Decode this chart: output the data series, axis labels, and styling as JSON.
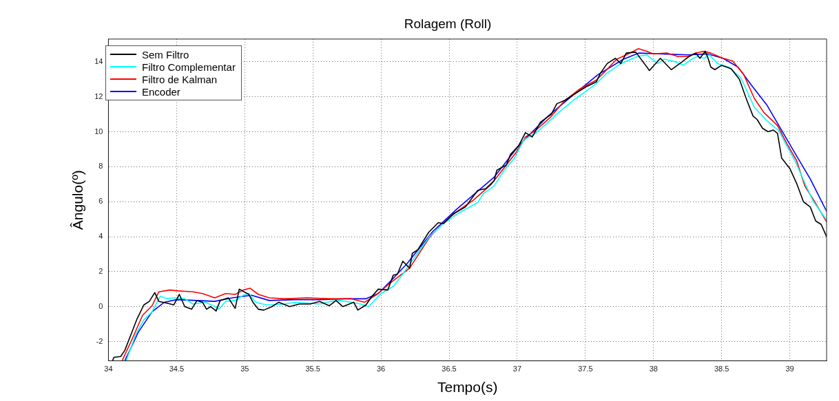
{
  "chart_data": {
    "type": "line",
    "title": "Rolagem (Roll)",
    "xlabel": "Tempo(s)",
    "ylabel": "Ângulo(º)",
    "xlim": [
      34,
      39.27
    ],
    "ylim": [
      -3.1,
      15.3
    ],
    "xticks": [
      34,
      34.5,
      35,
      35.5,
      36,
      36.5,
      37,
      37.5,
      38,
      38.5,
      39
    ],
    "yticks": [
      -2,
      0,
      2,
      4,
      6,
      8,
      10,
      12,
      14
    ],
    "grid": true,
    "legend": "top left",
    "line_style": "solid",
    "marker": "none",
    "series": [
      {
        "name": "Sem Filtro",
        "color": "#000000",
        "x": [
          34.03,
          34.04,
          34.09,
          34.12,
          34.17,
          34.21,
          34.26,
          34.3,
          34.34,
          34.37,
          34.43,
          34.48,
          34.52,
          34.56,
          34.61,
          34.65,
          34.69,
          34.72,
          34.75,
          34.79,
          34.82,
          34.88,
          34.93,
          34.96,
          35.03,
          35.06,
          35.1,
          35.14,
          35.2,
          35.25,
          35.33,
          35.4,
          35.48,
          35.55,
          35.62,
          35.67,
          35.72,
          35.8,
          35.83,
          35.89,
          35.93,
          35.98,
          36.05,
          36.09,
          36.12,
          36.16,
          36.21,
          36.23,
          36.27,
          36.35,
          36.42,
          36.46,
          36.53,
          36.62,
          36.71,
          36.77,
          36.83,
          36.85,
          36.92,
          36.95,
          37.01,
          37.06,
          37.11,
          37.17,
          37.25,
          37.29,
          37.35,
          37.4,
          37.5,
          37.58,
          37.61,
          37.66,
          37.72,
          37.76,
          37.8,
          37.87,
          37.97,
          38.05,
          38.13,
          38.21,
          38.26,
          38.31,
          38.34,
          38.38,
          38.4,
          38.42,
          38.45,
          38.5,
          38.57,
          38.63,
          38.68,
          38.73,
          38.76,
          38.8,
          38.84,
          38.88,
          38.91,
          38.94,
          39.0,
          39.05,
          39.1,
          39.15,
          39.19,
          39.23,
          39.27
        ],
        "values": [
          -3.1,
          -2.9,
          -2.85,
          -2.5,
          -1.5,
          -0.7,
          0.1,
          0.3,
          0.8,
          0.3,
          0.2,
          0.1,
          0.7,
          0,
          -0.15,
          0.35,
          0.25,
          -0.15,
          0,
          -0.25,
          0.35,
          0.5,
          -0.1,
          1.0,
          0.7,
          0.25,
          -0.15,
          -0.2,
          0,
          0.25,
          0,
          0.15,
          0.15,
          0.3,
          0.05,
          0.35,
          0,
          0.25,
          -0.2,
          0.1,
          0.55,
          1.0,
          0.95,
          1.8,
          1.85,
          2.6,
          2.2,
          3.05,
          3.25,
          4.25,
          4.8,
          4.75,
          5.3,
          5.7,
          6.65,
          6.75,
          7.2,
          7.8,
          8.1,
          8.7,
          9.2,
          9.95,
          9.7,
          10.55,
          11.0,
          11.6,
          11.8,
          12.05,
          12.55,
          12.85,
          13.35,
          13.9,
          14.2,
          13.9,
          14.5,
          14.55,
          13.5,
          14.2,
          13.55,
          14.0,
          14.3,
          14.5,
          14.2,
          14.6,
          14.2,
          13.7,
          13.55,
          13.8,
          13.6,
          13.0,
          11.9,
          10.9,
          10.7,
          10.2,
          10.0,
          10.1,
          9.9,
          8.5,
          7.9,
          7.05,
          6.0,
          5.7,
          4.9,
          4.7,
          4.0
        ]
      },
      {
        "name": "Filtro Complementar",
        "color": "#00ffff",
        "x": [
          34.13,
          34.2,
          34.26,
          34.32,
          34.38,
          34.43,
          34.48,
          34.56,
          34.62,
          34.71,
          34.77,
          34.81,
          34.86,
          34.93,
          34.99,
          35.03,
          35.08,
          35.16,
          35.2,
          35.29,
          35.37,
          35.46,
          35.55,
          35.63,
          35.7,
          35.78,
          35.85,
          35.91,
          36.0,
          36.09,
          36.15,
          36.24,
          36.36,
          36.45,
          36.56,
          36.71,
          36.75,
          36.83,
          36.9,
          36.98,
          37.05,
          37.13,
          37.2,
          37.31,
          37.43,
          37.5,
          37.58,
          37.65,
          37.76,
          37.88,
          37.95,
          38.03,
          38.08,
          38.16,
          38.22,
          38.28,
          38.32,
          38.37,
          38.41,
          38.47,
          38.55,
          38.64,
          38.74,
          38.83,
          38.92,
          39.04,
          39.1,
          39.17,
          39.27
        ],
        "values": [
          -3.1,
          -1.6,
          -0.75,
          -0.3,
          0.6,
          0.45,
          0.5,
          0.45,
          0.15,
          0.25,
          0.05,
          -0.15,
          0.3,
          0.35,
          0.65,
          0.75,
          0.25,
          0.1,
          0.1,
          0.15,
          0.25,
          0.2,
          0.15,
          0.3,
          0.35,
          0.25,
          0.15,
          0,
          0.75,
          1.15,
          1.75,
          2.75,
          4.05,
          4.7,
          5.3,
          5.95,
          6.45,
          6.9,
          7.75,
          8.5,
          9.55,
          9.9,
          10.35,
          11.15,
          11.9,
          12.3,
          12.75,
          13.3,
          13.9,
          14.3,
          14.4,
          13.9,
          14.15,
          14.0,
          13.8,
          14.15,
          14.3,
          14.2,
          14.4,
          13.9,
          13.7,
          13.1,
          11.4,
          10.65,
          10.05,
          8.3,
          7.25,
          6.05,
          4.95
        ]
      },
      {
        "name": "Filtro de Kalman",
        "color": "#ff0000",
        "x": [
          34.1,
          34.18,
          34.25,
          34.32,
          34.37,
          34.45,
          34.51,
          34.62,
          34.69,
          34.78,
          34.86,
          34.93,
          34.99,
          35.04,
          35.1,
          35.18,
          35.29,
          35.46,
          35.63,
          35.78,
          35.88,
          35.97,
          36.06,
          36.21,
          36.36,
          36.45,
          36.56,
          36.68,
          36.81,
          36.88,
          36.99,
          37.06,
          37.13,
          37.24,
          37.35,
          37.46,
          37.58,
          37.65,
          37.73,
          37.8,
          37.89,
          37.95,
          38.0,
          38.1,
          38.18,
          38.25,
          38.31,
          38.37,
          38.42,
          38.51,
          38.58,
          38.66,
          38.74,
          38.81,
          38.91,
          38.98,
          39.05,
          39.11,
          39.19,
          39.27
        ],
        "values": [
          -3.1,
          -1.75,
          -0.5,
          0.05,
          0.85,
          0.95,
          0.9,
          0.85,
          0.75,
          0.5,
          0.75,
          0.7,
          0.95,
          1.05,
          0.7,
          0.5,
          0.45,
          0.5,
          0.45,
          0.45,
          0.25,
          0.7,
          1.3,
          2.2,
          4.0,
          4.75,
          5.45,
          6.1,
          7.0,
          7.7,
          8.8,
          9.7,
          10.05,
          10.8,
          11.8,
          12.45,
          12.95,
          13.5,
          14.15,
          14.4,
          14.75,
          14.6,
          14.45,
          14.5,
          14.3,
          14.3,
          14.5,
          14.6,
          14.5,
          14.2,
          14.05,
          13.3,
          11.9,
          11.1,
          10.35,
          9.3,
          8.35,
          6.9,
          5.9,
          4.85
        ]
      },
      {
        "name": "Encoder",
        "color": "#0000ff",
        "x": [
          34.12,
          34.22,
          34.32,
          34.41,
          34.5,
          34.65,
          34.78,
          34.91,
          35.05,
          35.18,
          35.37,
          35.55,
          35.74,
          35.89,
          35.98,
          36.1,
          36.19,
          36.38,
          36.56,
          36.83,
          37.01,
          37.22,
          37.41,
          37.59,
          37.78,
          37.89,
          38.06,
          38.25,
          38.4,
          38.51,
          38.62,
          38.72,
          38.83,
          38.92,
          39.04,
          39.15,
          39.27
        ],
        "values": [
          -3.1,
          -1.45,
          -0.3,
          0.25,
          0.4,
          0.35,
          0.3,
          0.5,
          0.65,
          0.35,
          0.4,
          0.4,
          0.45,
          0.45,
          0.75,
          1.7,
          2.45,
          4.3,
          5.6,
          7.4,
          9.2,
          10.85,
          12.1,
          13.25,
          14.15,
          14.5,
          14.45,
          14.4,
          14.45,
          14.2,
          13.7,
          12.65,
          11.55,
          10.35,
          8.75,
          7.3,
          5.45
        ]
      }
    ]
  }
}
